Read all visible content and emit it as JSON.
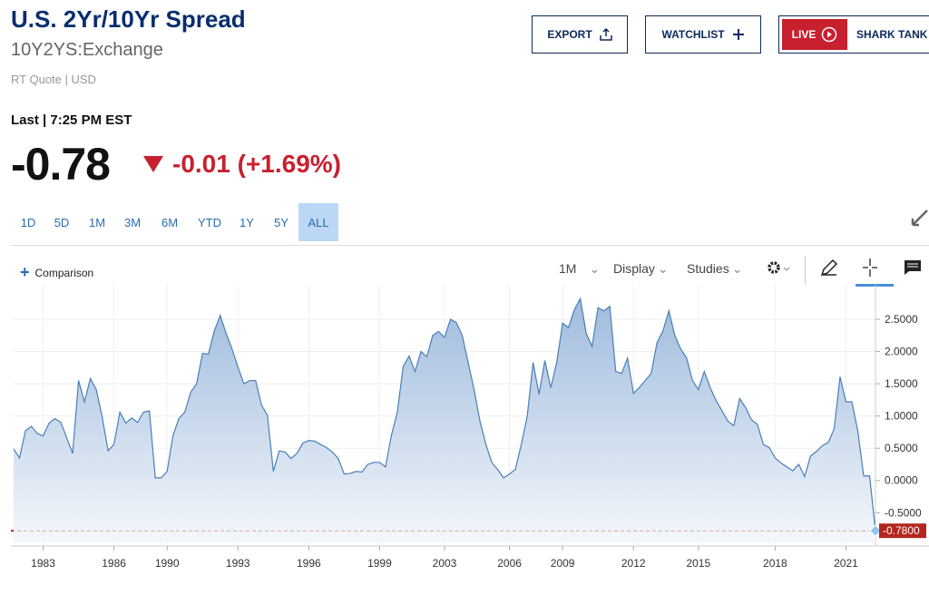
{
  "header": {
    "title": "U.S. 2Yr/10Yr Spread",
    "symbol": "10Y2YS:Exchange",
    "quote_info": "RT Quote | USD"
  },
  "buttons": [
    "EXPORT",
    "WATCHLIST"
  ],
  "live": {
    "badge": "LIVE",
    "label": "SHARK TANK"
  },
  "quote": {
    "time": "Last | 7:25 PM EST",
    "last": "-0.78",
    "change": "-0.01 (+1.69%)"
  },
  "ranges": [
    "1D",
    "5D",
    "1M",
    "3M",
    "6M",
    "YTD",
    "1Y",
    "5Y",
    "ALL"
  ],
  "active_range_index": 8,
  "toolbar": {
    "comparison": "Comparison",
    "interval": "1M",
    "display": "Display",
    "studies": "Studies"
  },
  "chart_data": {
    "type": "area",
    "color": "#4a7fb8",
    "categories": [
      null,
      null,
      null,
      null,
      null,
      "1983",
      null,
      null,
      null,
      null,
      null,
      null,
      null,
      null,
      null,
      null,
      null,
      "1986",
      null,
      null,
      null,
      null,
      null,
      null,
      null,
      null,
      "1990",
      null,
      null,
      null,
      null,
      null,
      null,
      null,
      null,
      null,
      null,
      null,
      "1993",
      null,
      null,
      null,
      null,
      null,
      null,
      null,
      null,
      null,
      null,
      null,
      "1996",
      null,
      null,
      null,
      null,
      null,
      null,
      null,
      null,
      null,
      null,
      null,
      "1999",
      null,
      null,
      null,
      null,
      null,
      null,
      null,
      null,
      null,
      null,
      "2003",
      null,
      null,
      null,
      null,
      null,
      null,
      null,
      null,
      null,
      null,
      "2006",
      null,
      null,
      null,
      null,
      null,
      null,
      null,
      null,
      "2009",
      null,
      null,
      null,
      null,
      null,
      null,
      null,
      null,
      null,
      null,
      null,
      "2012",
      null,
      null,
      null,
      null,
      null,
      null,
      null,
      null,
      null,
      null,
      "2015",
      null,
      null,
      null,
      null,
      null,
      null,
      null,
      null,
      null,
      null,
      null,
      null,
      "2018",
      null,
      null,
      null,
      null,
      null,
      null,
      null,
      null,
      null,
      null,
      null,
      "2021",
      null,
      null,
      null,
      null,
      null
    ],
    "values": [
      0.49,
      0.35,
      0.77,
      0.84,
      0.73,
      0.69,
      0.89,
      0.96,
      0.9,
      0.66,
      0.42,
      1.55,
      1.22,
      1.58,
      1.41,
      0.99,
      0.46,
      0.56,
      1.06,
      0.89,
      0.97,
      0.9,
      1.06,
      1.08,
      0.04,
      0.04,
      0.14,
      0.7,
      0.96,
      1.06,
      1.37,
      1.5,
      1.97,
      1.96,
      2.32,
      2.56,
      2.28,
      2.04,
      1.76,
      1.5,
      1.55,
      1.55,
      1.17,
      1.01,
      0.14,
      0.46,
      0.44,
      0.34,
      0.42,
      0.58,
      0.62,
      0.61,
      0.56,
      0.51,
      0.44,
      0.34,
      0.1,
      0.11,
      0.14,
      0.13,
      0.25,
      0.28,
      0.28,
      0.21,
      0.7,
      1.06,
      1.77,
      1.93,
      1.69,
      2.0,
      1.92,
      2.25,
      2.31,
      2.22,
      2.5,
      2.45,
      2.25,
      1.83,
      1.41,
      0.92,
      0.56,
      0.28,
      0.17,
      0.04,
      0.1,
      0.17,
      0.56,
      0.99,
      1.83,
      1.34,
      1.86,
      1.44,
      1.83,
      2.44,
      2.37,
      2.65,
      2.82,
      2.28,
      2.08,
      2.68,
      2.63,
      2.7,
      1.69,
      1.66,
      1.9,
      1.35,
      1.44,
      1.55,
      1.66,
      2.14,
      2.32,
      2.63,
      2.25,
      2.04,
      1.9,
      1.55,
      1.41,
      1.69,
      1.44,
      1.24,
      1.08,
      0.92,
      0.85,
      1.27,
      1.13,
      0.94,
      0.87,
      0.56,
      0.51,
      0.35,
      0.27,
      0.21,
      0.15,
      0.25,
      0.06,
      0.38,
      0.45,
      0.54,
      0.59,
      0.8,
      1.61,
      1.22,
      1.22,
      0.77,
      0.07,
      0.07,
      -0.78
    ],
    "last_label": "-0.7800",
    "ylim": [
      -0.96,
      2.95
    ],
    "yticks": [
      {
        "value": 2.5,
        "label": "2.5000"
      },
      {
        "value": 2.0,
        "label": "2.0000"
      },
      {
        "value": 1.5,
        "label": "1.5000"
      },
      {
        "value": 1.0,
        "label": "1.0000"
      },
      {
        "value": 0.5,
        "label": "0.5000"
      },
      {
        "value": 0.0,
        "label": "0.0000"
      },
      {
        "value": -0.5,
        "label": "-0.5000"
      }
    ],
    "grid": true
  }
}
